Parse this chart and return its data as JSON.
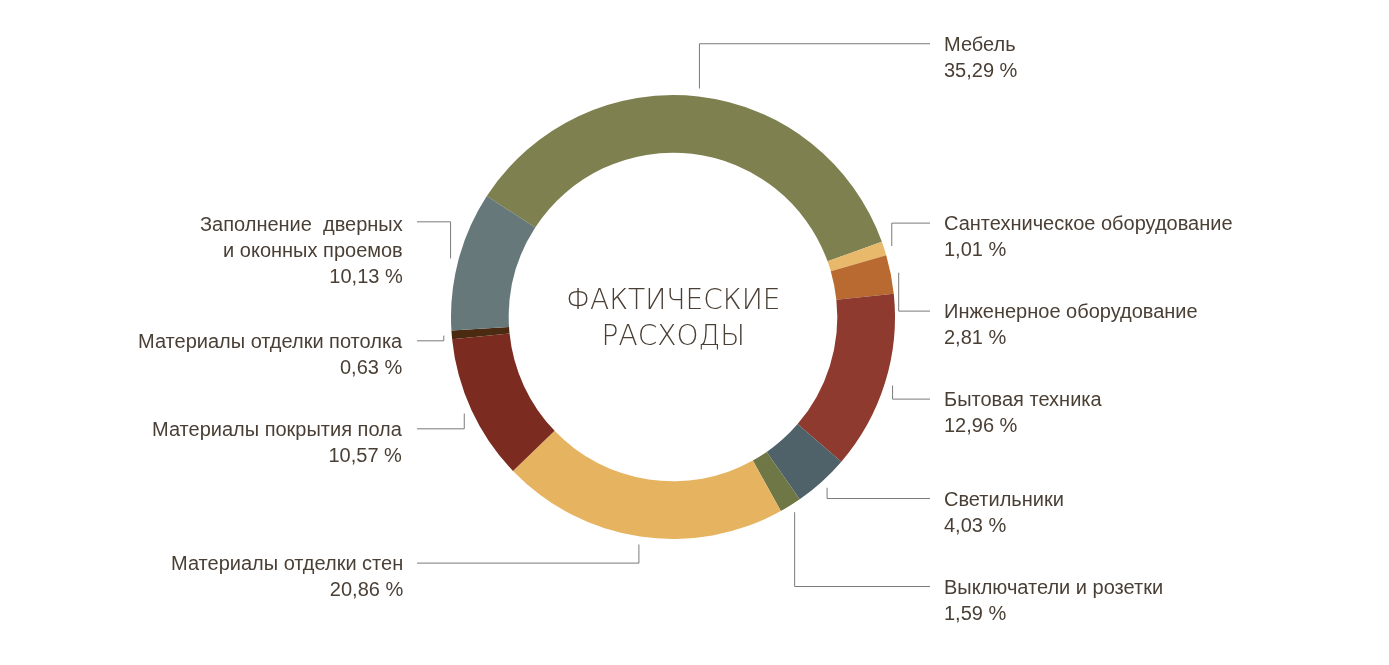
{
  "chart_data": {
    "type": "donut",
    "title": "ФАКТИЧЕСКИЕ РАСХОДЫ",
    "categories": [
      "Мебель",
      "Сантехническое оборудование",
      "Инженерное оборудование",
      "Бытовая техника",
      "Светильники",
      "Выключатели и розетки",
      "Материалы отделки стен",
      "Материалы покрытия пола",
      "Материалы отделки потолка",
      "Заполнение  дверных\nи оконных проемов"
    ],
    "values": [
      35.29,
      1.01,
      2.81,
      12.96,
      4.03,
      1.59,
      20.86,
      10.57,
      0.63,
      10.13
    ],
    "value_labels": [
      "35,29 %",
      "1,01 %",
      "2,81 %",
      "12,96 %",
      "4,03 %",
      "1,59 %",
      "20,86 %",
      "10,57 %",
      "0,63 %",
      "10,13 %"
    ],
    "colors": [
      "#7e8050",
      "#e8b96a",
      "#b96a30",
      "#8e3a2e",
      "#4f626a",
      "#6f7746",
      "#e6b461",
      "#7c2b20",
      "#4a2a10",
      "#66787a"
    ],
    "legend": false
  }
}
